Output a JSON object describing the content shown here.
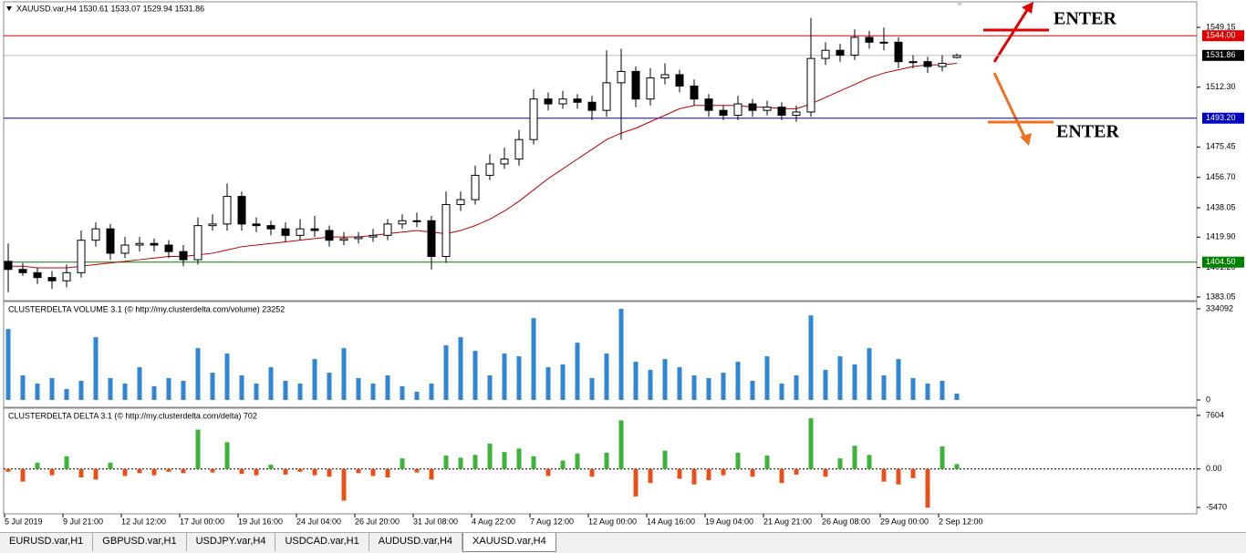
{
  "chart_data": [
    {
      "type": "candlestick",
      "title": "XAUUSD.var,H4  1530.61 1533.07 1529.94 1531.86",
      "categories": [
        "5 Jul 2019",
        null,
        null,
        null,
        "9 Jul 21:00",
        null,
        null,
        null,
        "12 Jul 12:00",
        null,
        null,
        null,
        "17 Jul 00:00",
        null,
        null,
        null,
        "19 Jul 16:00",
        null,
        null,
        null,
        "24 Jul 04:00",
        null,
        null,
        null,
        "26 Jul 20:00",
        null,
        null,
        null,
        "31 Jul 08:00",
        null,
        null,
        null,
        "4 Aug 22:00",
        null,
        null,
        null,
        "7 Aug 12:00",
        null,
        null,
        null,
        "12 Aug 00:00",
        null,
        null,
        null,
        "14 Aug 16:00",
        null,
        null,
        null,
        "19 Aug 04:00",
        null,
        null,
        null,
        "21 Aug 21:00",
        null,
        null,
        null,
        "26 Aug 08:00",
        null,
        null,
        null,
        "29 Aug 00:00",
        null,
        null,
        null,
        "2 Sep 12:00",
        null
      ],
      "open": [
        1405,
        1400,
        1398,
        1395,
        1393,
        1398,
        1418,
        1425,
        1410,
        1415,
        1416,
        1415,
        1411,
        1406,
        1427,
        1428,
        1445,
        1428,
        1427,
        1425,
        1421,
        1425,
        1424,
        1418,
        1419,
        1420,
        1421,
        1428,
        1430,
        1430,
        1408,
        1440,
        1443,
        1458,
        1465,
        1468,
        1480,
        1505,
        1502,
        1505,
        1503,
        1498,
        1515,
        1522,
        1505,
        1518,
        1520,
        1513,
        1505,
        1498,
        1495,
        1502,
        1498,
        1500,
        1495,
        1497,
        1530,
        1535,
        1532,
        1543,
        1540,
        1540,
        1528,
        1528,
        1525,
        1530.61
      ],
      "high": [
        1416,
        1404,
        1401,
        1399,
        1403,
        1424,
        1429,
        1428,
        1420,
        1420,
        1419,
        1418,
        1415,
        1432,
        1434,
        1453,
        1448,
        1432,
        1430,
        1429,
        1431,
        1433,
        1427,
        1423,
        1423,
        1425,
        1431,
        1434,
        1435,
        1433,
        1448,
        1448,
        1464,
        1471,
        1475,
        1486,
        1511,
        1509,
        1510,
        1508,
        1507,
        1535,
        1536,
        1525,
        1524,
        1527,
        1523,
        1517,
        1508,
        1501,
        1507,
        1505,
        1504,
        1503,
        1501,
        1555,
        1540,
        1539,
        1548,
        1547,
        1549,
        1543,
        1532,
        1531,
        1532,
        1533.07
      ],
      "low": [
        1386,
        1396,
        1391,
        1388,
        1389,
        1395,
        1414,
        1406,
        1407,
        1411,
        1411,
        1407,
        1402,
        1403,
        1424,
        1424,
        1424,
        1423,
        1421,
        1417,
        1418,
        1420,
        1414,
        1415,
        1416,
        1417,
        1418,
        1425,
        1426,
        1400,
        1404,
        1436,
        1440,
        1455,
        1462,
        1464,
        1477,
        1498,
        1499,
        1499,
        1492,
        1494,
        1480,
        1500,
        1501,
        1514,
        1509,
        1501,
        1494,
        1492,
        1492,
        1494,
        1495,
        1492,
        1491,
        1494,
        1526,
        1528,
        1529,
        1536,
        1535,
        1524,
        1524,
        1521,
        1522,
        1529.94
      ],
      "close": [
        1400,
        1398,
        1395,
        1393,
        1398,
        1418,
        1425,
        1410,
        1415,
        1416,
        1415,
        1411,
        1406,
        1427,
        1428,
        1445,
        1428,
        1427,
        1425,
        1421,
        1425,
        1424,
        1418,
        1419,
        1420,
        1421,
        1428,
        1430,
        1430,
        1408,
        1440,
        1443,
        1458,
        1465,
        1468,
        1480,
        1505,
        1502,
        1505,
        1503,
        1498,
        1515,
        1522,
        1505,
        1518,
        1520,
        1513,
        1505,
        1498,
        1495,
        1502,
        1498,
        1500,
        1495,
        1497,
        1530,
        1535,
        1532,
        1543,
        1540,
        1540,
        1528,
        1528,
        1525,
        1527,
        1531.86
      ],
      "up_color": "#ffffff",
      "down_color": "#000000",
      "outline_color": "#000000",
      "moving_average": {
        "color": "#c00000",
        "values": [
          1402,
          1402,
          1401,
          1401,
          1401,
          1402,
          1403,
          1404,
          1405,
          1406,
          1407,
          1408,
          1408,
          1409,
          1410,
          1412,
          1414,
          1415,
          1416,
          1417,
          1418,
          1419,
          1420,
          1420,
          1420,
          1421,
          1422,
          1423,
          1424,
          1423,
          1422,
          1424,
          1427,
          1431,
          1436,
          1442,
          1449,
          1456,
          1462,
          1468,
          1474,
          1480,
          1484,
          1487,
          1491,
          1495,
          1499,
          1501,
          1501,
          1501,
          1501,
          1500,
          1500,
          1499,
          1499,
          1502,
          1506,
          1510,
          1514,
          1518,
          1521,
          1523,
          1525,
          1526,
          1526,
          1527
        ]
      },
      "ylim": [
        1381.9,
        1555.9
      ],
      "yticks": [
        1383.05,
        {
          "value": 1401.2,
          "label": "1401.20"
        },
        {
          "value": 1419.9,
          "label": "1419.90"
        },
        1438.05,
        {
          "value": 1456.7,
          "label": "1456.70"
        },
        1475.45,
        {
          "value": 1512.3,
          "label": "1512.30"
        },
        1549.15
      ],
      "levels": [
        {
          "value": 1544,
          "label": "1544.00",
          "color": "#e00000"
        },
        {
          "value": 1493.2,
          "label": "1493.20",
          "color": "#0000c0"
        },
        {
          "value": 1404.5,
          "label": "1404.50",
          "color": "#008000"
        }
      ],
      "last_price": 1531.86
    },
    {
      "type": "bar",
      "title": "CLUSTERDELTA VOLUME 3.1 (© http://my.clusterdelta.com/volume) 23252",
      "values": [
        260000,
        90000,
        60000,
        80000,
        40000,
        70000,
        230000,
        80000,
        60000,
        120000,
        50000,
        80000,
        70000,
        190000,
        100000,
        170000,
        90000,
        60000,
        120000,
        70000,
        60000,
        150000,
        100000,
        190000,
        80000,
        60000,
        90000,
        50000,
        30000,
        60000,
        200000,
        230000,
        180000,
        90000,
        170000,
        160000,
        300000,
        120000,
        130000,
        210000,
        80000,
        170000,
        334000,
        140000,
        110000,
        150000,
        120000,
        90000,
        80000,
        100000,
        140000,
        70000,
        160000,
        60000,
        90000,
        310000,
        110000,
        160000,
        130000,
        190000,
        90000,
        150000,
        80000,
        60000,
        70000,
        23252
      ],
      "color": "#2f86d6",
      "ylim": [
        -20046,
        354138
      ],
      "yticks": [
        0,
        334092
      ]
    },
    {
      "type": "bar",
      "title": "CLUSTERDELTA DELTA 3.1 (© http://my.clusterdelta.com/delta) 702",
      "values": [
        -400,
        -1800,
        900,
        -900,
        1800,
        -1200,
        -1500,
        900,
        -1000,
        -600,
        -900,
        -400,
        -600,
        5600,
        -500,
        3800,
        -700,
        -900,
        600,
        -800,
        -400,
        -900,
        -1100,
        -4500,
        -600,
        -1000,
        -1200,
        1500,
        -500,
        -1500,
        1900,
        1600,
        2000,
        3600,
        2400,
        2900,
        1800,
        -1000,
        1200,
        2200,
        -1100,
        2300,
        6900,
        -3900,
        -2000,
        2600,
        -1400,
        -2200,
        -1600,
        -900,
        2300,
        -1100,
        1900,
        -2000,
        -800,
        7200,
        -1100,
        1500,
        3300,
        2000,
        -1800,
        -2200,
        -1300,
        -5500,
        3200,
        702
      ],
      "up_color": "#3cb43c",
      "down_color": "#e8501a",
      "ylim": [
        -6115,
        8378
      ],
      "yticks": [
        7604,
        {
          "value": 0,
          "label": "0.00"
        },
        -5470
      ]
    }
  ],
  "annotations": [
    {
      "text": "ENTER",
      "color": "#e00000"
    },
    {
      "text": "ENTER",
      "color": "#f07020"
    }
  ],
  "tabs": [
    "EURUSD.var,H1",
    "GBPUSD.var,H1",
    "USDJPY.var,H4",
    "USDCAD.var,H1",
    "AUDUSD.var,H4",
    "XAUUSD.var,H4"
  ],
  "active_tab": 5
}
